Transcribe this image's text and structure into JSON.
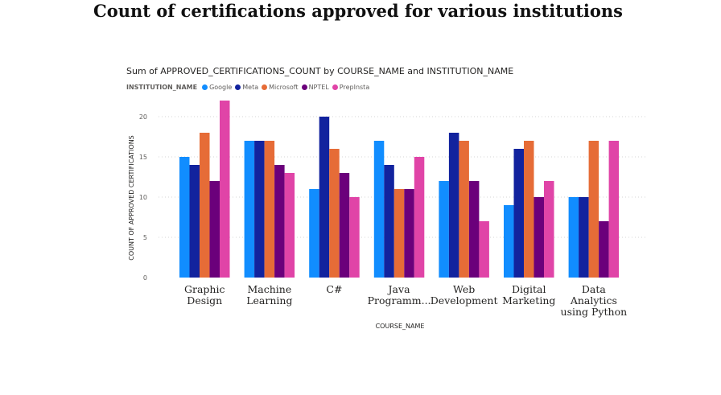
{
  "page": {
    "title": "Count of certifications approved for various institutions"
  },
  "visual": {
    "title": "Sum of APPROVED_CERTIFICATIONS_COUNT by COURSE_NAME and INSTITUTION_NAME",
    "legend_title": "INSTITUTION_NAME"
  },
  "chart_data": {
    "type": "bar",
    "title": "Sum of APPROVED_CERTIFICATIONS_COUNT by COURSE_NAME and INSTITUTION_NAME",
    "xlabel": "COURSE_NAME",
    "ylabel": "COUNT OF APPROVED CERTIFICATIONS",
    "ylim": [
      0,
      22
    ],
    "yticks": [
      0,
      5,
      10,
      15,
      20
    ],
    "grid": true,
    "legend_position": "top-left",
    "categories": [
      [
        "Graphic",
        "Design"
      ],
      [
        "Machine",
        "Learning"
      ],
      [
        "C#"
      ],
      [
        "Java",
        "Programm..."
      ],
      [
        "Web",
        "Development"
      ],
      [
        "Digital",
        "Marketing"
      ],
      [
        "Data",
        "Analytics",
        "using Python"
      ]
    ],
    "series": [
      {
        "name": "Google",
        "color": "#118dff",
        "values": [
          15,
          17,
          11,
          17,
          12,
          9,
          10
        ]
      },
      {
        "name": "Meta",
        "color": "#12239e",
        "values": [
          14,
          17,
          20,
          14,
          18,
          16,
          10
        ]
      },
      {
        "name": "Microsoft",
        "color": "#e66c37",
        "values": [
          18,
          17,
          16,
          11,
          17,
          17,
          17
        ]
      },
      {
        "name": "NPTEL",
        "color": "#6b007b",
        "values": [
          12,
          14,
          13,
          11,
          12,
          10,
          7
        ]
      },
      {
        "name": "PrepInsta",
        "color": "#e044a7",
        "values": [
          22,
          13,
          10,
          15,
          7,
          12,
          17
        ]
      }
    ]
  }
}
